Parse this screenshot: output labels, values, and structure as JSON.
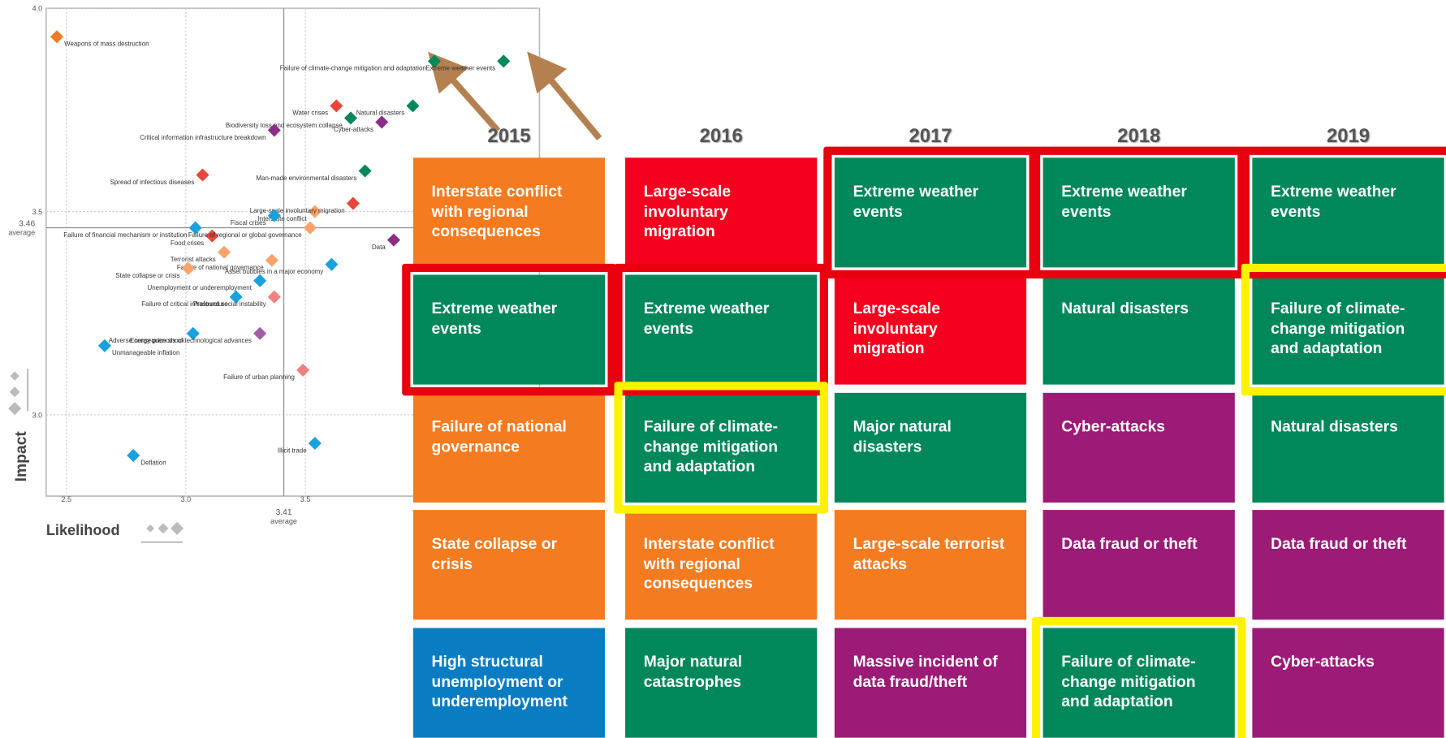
{
  "chart_data": {
    "type": "scatter",
    "x_label": "Likelihood",
    "y_label": "Impact",
    "xlim": [
      2.415,
      4.48
    ],
    "ylim": [
      2.8,
      4.0
    ],
    "xticks": [
      2.5,
      {
        "value": 3.0,
        "label": "3.0"
      },
      3.5
    ],
    "yticks": [
      {
        "value": 3.0,
        "label": "3.0"
      },
      3.5,
      {
        "value": 4.0,
        "label": "4.0"
      }
    ],
    "x_average": 3.41,
    "y_average": 3.46,
    "average_label": "average",
    "grid": true,
    "points": [
      {
        "label": "Weapons of mass destruction",
        "x": 2.46,
        "y": 3.93,
        "color": "#f47b20"
      },
      {
        "label": "Failure of climate-change mitigation and adaptation",
        "x": 4.04,
        "y": 3.87,
        "color": "#00875a"
      },
      {
        "label": "Extreme weather events",
        "x": 4.33,
        "y": 3.87,
        "color": "#00875a"
      },
      {
        "label": "Water crises",
        "x": 3.63,
        "y": 3.76,
        "color": "#e8453c"
      },
      {
        "label": "Natural disasters",
        "x": 3.95,
        "y": 3.76,
        "color": "#00875a"
      },
      {
        "label": "Biodiversity loss and ecosystem collapse",
        "x": 3.69,
        "y": 3.73,
        "color": "#00875a"
      },
      {
        "label": "Cyber-attacks",
        "x": 3.82,
        "y": 3.72,
        "color": "#8e2c8a"
      },
      {
        "label": "Critical information infrastructure breakdown",
        "x": 3.37,
        "y": 3.7,
        "color": "#8e2c8a"
      },
      {
        "label": "Spread of infectious diseases",
        "x": 3.07,
        "y": 3.59,
        "color": "#e8453c"
      },
      {
        "label": "Man-made environmental disasters",
        "x": 3.75,
        "y": 3.6,
        "color": "#00875a"
      },
      {
        "label": "Interstate conflict",
        "x": 3.54,
        "y": 3.5,
        "color": "#f9a36b"
      },
      {
        "label": "Large-scale involuntary migration",
        "x": 3.7,
        "y": 3.52,
        "color": "#e8453c"
      },
      {
        "label": "Fiscal crises",
        "x": 3.37,
        "y": 3.49,
        "color": "#1aa0dc"
      },
      {
        "label": "Failure of financial mechanism or institution",
        "x": 3.04,
        "y": 3.46,
        "color": "#1aa0dc"
      },
      {
        "label": "Food crises",
        "x": 3.11,
        "y": 3.44,
        "color": "#e8453c"
      },
      {
        "label": "Failure of regional or global governance",
        "x": 3.52,
        "y": 3.46,
        "color": "#f9a36b"
      },
      {
        "label": "Data",
        "x": 3.87,
        "y": 3.43,
        "color": "#8e2c8a"
      },
      {
        "label": "Terrorist attacks",
        "x": 3.16,
        "y": 3.4,
        "color": "#f9a36b"
      },
      {
        "label": "Failure of national governance",
        "x": 3.36,
        "y": 3.38,
        "color": "#f9a36b"
      },
      {
        "label": "Asset bubbles in a major economy",
        "x": 3.61,
        "y": 3.37,
        "color": "#1aa0dc"
      },
      {
        "label": "State collapse or crisis",
        "x": 3.01,
        "y": 3.36,
        "color": "#f9a36b"
      },
      {
        "label": "Unemployment or underemployment",
        "x": 3.31,
        "y": 3.33,
        "color": "#1aa0dc"
      },
      {
        "label": "Failure of critical infrastructure",
        "x": 3.21,
        "y": 3.29,
        "color": "#1aa0dc"
      },
      {
        "label": "Profound social instability",
        "x": 3.37,
        "y": 3.29,
        "color": "#f08080"
      },
      {
        "label": "Energy price shock",
        "x": 3.03,
        "y": 3.2,
        "color": "#1aa0dc"
      },
      {
        "label": "Adverse consequences of technological advances",
        "x": 3.31,
        "y": 3.2,
        "color": "#a35ca8"
      },
      {
        "label": "Unmanageable inflation",
        "x": 2.66,
        "y": 3.17,
        "color": "#1aa0dc"
      },
      {
        "label": "Failure of urban planning",
        "x": 3.49,
        "y": 3.11,
        "color": "#f08080"
      },
      {
        "label": "Illicit trade",
        "x": 3.54,
        "y": 2.93,
        "color": "#1aa0dc"
      },
      {
        "label": "Deflation",
        "x": 2.78,
        "y": 2.9,
        "color": "#1aa0dc"
      }
    ]
  },
  "risk_table": {
    "columns": [
      {
        "year": "2015",
        "cells": [
          {
            "text": "Interstate conflict with regional consequences",
            "color": "#f47b20"
          },
          {
            "text": "Extreme weather events",
            "color": "#00875a",
            "highlight": "#e8000e"
          },
          {
            "text": "Failure of national governance",
            "color": "#f47b20"
          },
          {
            "text": "State collapse or crisis",
            "color": "#f47b20"
          },
          {
            "text": "High structural unemployment or underemployment",
            "color": "#0a7dc2"
          }
        ]
      },
      {
        "year": "2016",
        "cells": [
          {
            "text": "Large-scale involuntary migration",
            "color": "#f5001e"
          },
          {
            "text": "Extreme weather events",
            "color": "#00875a",
            "highlight": "#e8000e"
          },
          {
            "text": "Failure of climate-change mitigation and adaptation",
            "color": "#00875a",
            "highlight": "#fff200"
          },
          {
            "text": "Interstate conflict with regional consequences",
            "color": "#f47b20"
          },
          {
            "text": "Major natural catastrophes",
            "color": "#00875a"
          }
        ]
      },
      {
        "year": "2017",
        "cells": [
          {
            "text": "Extreme weather events",
            "color": "#00875a",
            "highlight": "#e8000e"
          },
          {
            "text": "Large-scale involuntary migration",
            "color": "#f5001e"
          },
          {
            "text": "Major natural disasters",
            "color": "#00875a"
          },
          {
            "text": "Large-scale terrorist attacks",
            "color": "#f47b20"
          },
          {
            "text": "Massive incident of data fraud/theft",
            "color": "#9b1b77"
          }
        ]
      },
      {
        "year": "2018",
        "cells": [
          {
            "text": "Extreme weather events",
            "color": "#00875a",
            "highlight": "#e8000e"
          },
          {
            "text": "Natural disasters",
            "color": "#00875a"
          },
          {
            "text": "Cyber-attacks",
            "color": "#9b1b77"
          },
          {
            "text": "Data fraud or theft",
            "color": "#9b1b77"
          },
          {
            "text": "Failure of climate-change mitigation and adaptation",
            "color": "#00875a",
            "highlight": "#fff200"
          }
        ]
      },
      {
        "year": "2019",
        "cells": [
          {
            "text": "Extreme weather events",
            "color": "#00875a",
            "highlight": "#e8000e"
          },
          {
            "text": "Failure of climate-change mitigation and adaptation",
            "color": "#00875a",
            "highlight": "#fff200"
          },
          {
            "text": "Natural disasters",
            "color": "#00875a"
          },
          {
            "text": "Data fraud or theft",
            "color": "#9b1b77"
          },
          {
            "text": "Cyber-attacks",
            "color": "#9b1b77"
          }
        ]
      }
    ]
  }
}
